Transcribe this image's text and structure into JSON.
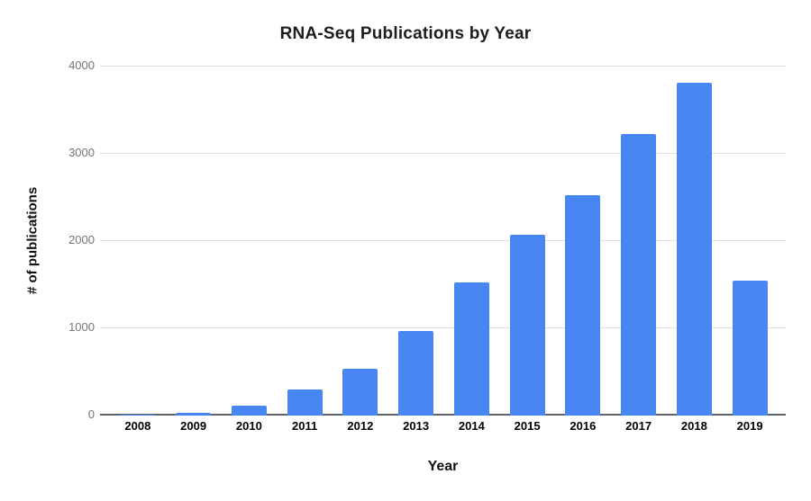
{
  "chart_data": {
    "type": "bar",
    "title": "RNA-Seq Publications by Year",
    "xlabel": "Year",
    "ylabel": "# of publications",
    "categories": [
      "2008",
      "2009",
      "2010",
      "2011",
      "2012",
      "2013",
      "2014",
      "2015",
      "2016",
      "2017",
      "2018",
      "2019"
    ],
    "series": [
      {
        "name": "# of publications",
        "values": [
          15,
          35,
          115,
          300,
          540,
          970,
          1530,
          2070,
          2530,
          3230,
          3810,
          1550
        ]
      }
    ],
    "ylim": [
      0,
      4000
    ],
    "yticks": [
      0,
      1000,
      2000,
      3000,
      4000
    ],
    "grid": "horizontal",
    "legend_position": "none",
    "colors": {
      "bar": "#4786f3",
      "gridline": "#e0e0e0",
      "axis_line": "#5f6368",
      "y_tick_text": "#757575",
      "x_tick_text": "#000000",
      "title_text": "#1d1d1d",
      "background": "#ffffff"
    }
  }
}
